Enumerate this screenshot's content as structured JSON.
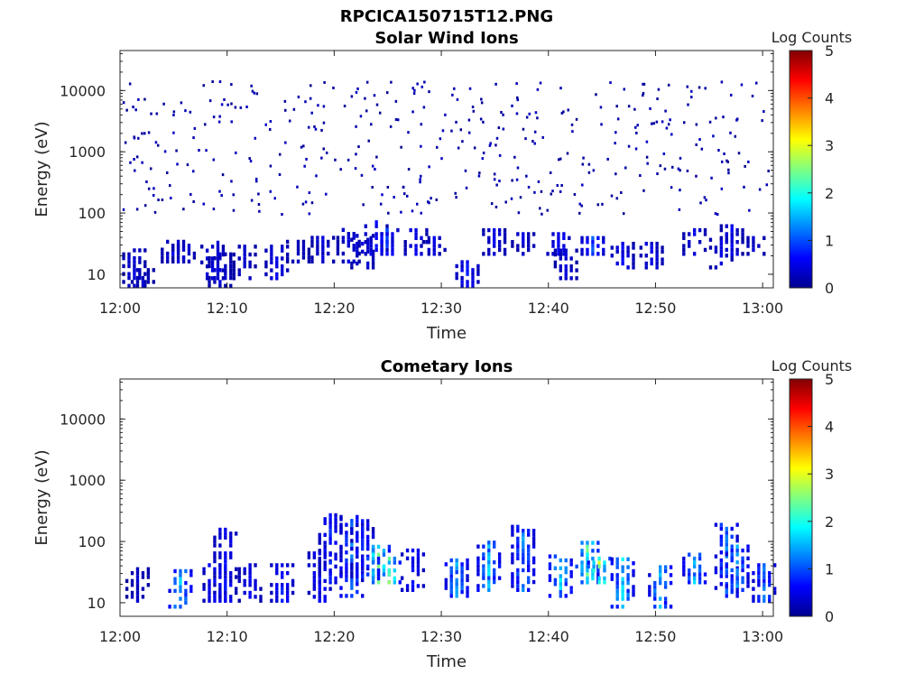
{
  "figure_title": "RPCICA150715T12.PNG",
  "colormap": [
    "#00008f",
    "#0000ff",
    "#0080ff",
    "#00ffff",
    "#80ff80",
    "#ffff00",
    "#ff8000",
    "#ff0000",
    "#800000"
  ],
  "chart_data": [
    {
      "type": "heatmap",
      "title": "Solar Wind Ions",
      "xlabel": "Time",
      "ylabel": "Energy (eV)",
      "x_ticks": [
        "12:00",
        "12:10",
        "12:20",
        "12:30",
        "12:40",
        "12:50",
        "13:00"
      ],
      "x_tick_values_min": [
        0,
        10,
        20,
        30,
        40,
        50,
        60
      ],
      "xlim_min": [
        0,
        61
      ],
      "y_ticks": [
        "10",
        "100",
        "1000",
        "10000"
      ],
      "y_tick_values": [
        10,
        100,
        1000,
        10000
      ],
      "y_scale": "log",
      "ylim": [
        6,
        45000
      ],
      "colorbar": {
        "label": "Log Counts",
        "ticks": [
          "0",
          "1",
          "2",
          "3",
          "4",
          "5"
        ],
        "range": [
          0,
          5
        ]
      },
      "clusters": [
        {
          "t": 1.2,
          "e_lo": 6,
          "e_hi": 25,
          "max": 0.5
        },
        {
          "t": 2.0,
          "e_lo": 6,
          "e_hi": 12,
          "max": 0.4
        },
        {
          "t": 4.8,
          "e_lo": 15,
          "e_hi": 35,
          "max": 0.6
        },
        {
          "t": 5.8,
          "e_lo": 15,
          "e_hi": 30,
          "max": 0.5
        },
        {
          "t": 8.5,
          "e_lo": 8,
          "e_hi": 35,
          "max": 0.6
        },
        {
          "t": 9.2,
          "e_lo": 6,
          "e_hi": 20,
          "max": 0.5
        },
        {
          "t": 11.5,
          "e_lo": 8,
          "e_hi": 30,
          "max": 0.4
        },
        {
          "t": 14.5,
          "e_lo": 8,
          "e_hi": 30,
          "max": 0.6
        },
        {
          "t": 16.5,
          "e_lo": 15,
          "e_hi": 35,
          "max": 0.4
        },
        {
          "t": 18.8,
          "e_lo": 15,
          "e_hi": 40,
          "max": 0.5
        },
        {
          "t": 21.2,
          "e_lo": 15,
          "e_hi": 50,
          "max": 0.5
        },
        {
          "t": 22.5,
          "e_lo": 12,
          "e_hi": 45,
          "max": 0.6
        },
        {
          "t": 23.8,
          "e_lo": 20,
          "e_hi": 70,
          "max": 0.8
        },
        {
          "t": 24.8,
          "e_lo": 20,
          "e_hi": 50,
          "max": 1.0
        },
        {
          "t": 27.5,
          "e_lo": 20,
          "e_hi": 55,
          "max": 0.6
        },
        {
          "t": 29.2,
          "e_lo": 20,
          "e_hi": 40,
          "max": 0.5
        },
        {
          "t": 32.3,
          "e_lo": 6,
          "e_hi": 15,
          "max": 0.8
        },
        {
          "t": 34.8,
          "e_lo": 20,
          "e_hi": 50,
          "max": 0.6
        },
        {
          "t": 37.5,
          "e_lo": 20,
          "e_hi": 45,
          "max": 0.5
        },
        {
          "t": 40.8,
          "e_lo": 20,
          "e_hi": 45,
          "max": 0.8
        },
        {
          "t": 41.5,
          "e_lo": 8,
          "e_hi": 25,
          "max": 0.5
        },
        {
          "t": 44.0,
          "e_lo": 20,
          "e_hi": 40,
          "max": 1.2
        },
        {
          "t": 46.8,
          "e_lo": 12,
          "e_hi": 30,
          "max": 0.7
        },
        {
          "t": 49.5,
          "e_lo": 12,
          "e_hi": 30,
          "max": 0.6
        },
        {
          "t": 53.5,
          "e_lo": 20,
          "e_hi": 50,
          "max": 0.6
        },
        {
          "t": 56.0,
          "e_lo": 12,
          "e_hi": 40,
          "max": 0.5
        },
        {
          "t": 57.0,
          "e_lo": 20,
          "e_hi": 60,
          "max": 0.6
        },
        {
          "t": 59.0,
          "e_lo": 20,
          "e_hi": 40,
          "max": 0.4
        }
      ],
      "scatter_range": {
        "e_lo": 100,
        "e_hi": 15000,
        "max": 0.3
      }
    },
    {
      "type": "heatmap",
      "title": "Cometary Ions",
      "xlabel": "Time",
      "ylabel": "Energy (eV)",
      "x_ticks": [
        "12:00",
        "12:10",
        "12:20",
        "12:30",
        "12:40",
        "12:50",
        "13:00"
      ],
      "x_tick_values_min": [
        0,
        10,
        20,
        30,
        40,
        50,
        60
      ],
      "xlim_min": [
        0,
        61
      ],
      "y_ticks": [
        "10",
        "100",
        "1000",
        "10000"
      ],
      "y_tick_values": [
        10,
        100,
        1000,
        10000
      ],
      "y_scale": "log",
      "ylim": [
        6,
        45000
      ],
      "colorbar": {
        "label": "Log Counts",
        "ticks": [
          "0",
          "1",
          "2",
          "3",
          "4",
          "5"
        ],
        "range": [
          0,
          5
        ]
      },
      "clusters": [
        {
          "t": 1.5,
          "e_lo": 10,
          "e_hi": 35,
          "max": 0.4
        },
        {
          "t": 5.5,
          "e_lo": 8,
          "e_hi": 35,
          "max": 1.8
        },
        {
          "t": 8.7,
          "e_lo": 10,
          "e_hi": 40,
          "max": 0.9
        },
        {
          "t": 9.7,
          "e_lo": 10,
          "e_hi": 150,
          "max": 0.8
        },
        {
          "t": 12.0,
          "e_lo": 10,
          "e_hi": 40,
          "max": 0.6
        },
        {
          "t": 15.0,
          "e_lo": 10,
          "e_hi": 40,
          "max": 0.9
        },
        {
          "t": 18.5,
          "e_lo": 10,
          "e_hi": 60,
          "max": 0.8
        },
        {
          "t": 19.5,
          "e_lo": 20,
          "e_hi": 250,
          "max": 0.9
        },
        {
          "t": 21.5,
          "e_lo": 12,
          "e_hi": 250,
          "max": 1.4
        },
        {
          "t": 22.5,
          "e_lo": 25,
          "e_hi": 200,
          "max": 1.0
        },
        {
          "t": 24.0,
          "e_lo": 20,
          "e_hi": 80,
          "max": 2.6
        },
        {
          "t": 25.0,
          "e_lo": 20,
          "e_hi": 50,
          "max": 2.8
        },
        {
          "t": 27.2,
          "e_lo": 15,
          "e_hi": 70,
          "max": 0.9
        },
        {
          "t": 31.3,
          "e_lo": 12,
          "e_hi": 50,
          "max": 1.7
        },
        {
          "t": 34.3,
          "e_lo": 15,
          "e_hi": 100,
          "max": 1.8
        },
        {
          "t": 37.5,
          "e_lo": 15,
          "e_hi": 180,
          "max": 1.5
        },
        {
          "t": 41.0,
          "e_lo": 12,
          "e_hi": 60,
          "max": 1.9
        },
        {
          "t": 43.5,
          "e_lo": 20,
          "e_hi": 100,
          "max": 2.5
        },
        {
          "t": 44.6,
          "e_lo": 20,
          "e_hi": 50,
          "max": 3.0
        },
        {
          "t": 46.8,
          "e_lo": 8,
          "e_hi": 50,
          "max": 2.0
        },
        {
          "t": 50.3,
          "e_lo": 8,
          "e_hi": 40,
          "max": 1.8
        },
        {
          "t": 53.5,
          "e_lo": 20,
          "e_hi": 60,
          "max": 1.8
        },
        {
          "t": 56.5,
          "e_lo": 12,
          "e_hi": 200,
          "max": 1.4
        },
        {
          "t": 57.5,
          "e_lo": 15,
          "e_hi": 80,
          "max": 1.6
        },
        {
          "t": 60.0,
          "e_lo": 10,
          "e_hi": 40,
          "max": 1.3
        }
      ]
    }
  ]
}
